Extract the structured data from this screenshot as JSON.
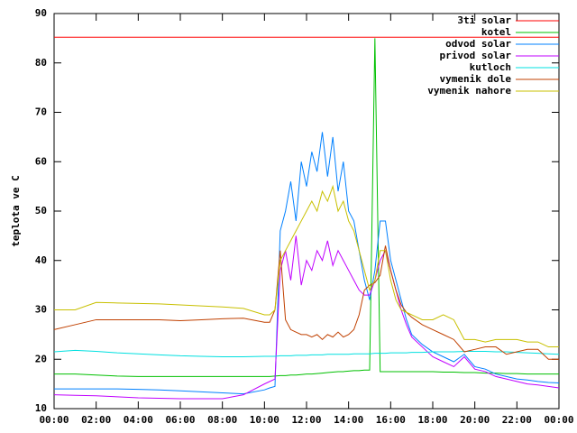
{
  "chart_data": {
    "type": "line",
    "y_label": "teplota ve C",
    "x": [
      0,
      1,
      2,
      3,
      4,
      5,
      6,
      7,
      8,
      9,
      10,
      10.25,
      10.5,
      10.75,
      11,
      11.25,
      11.5,
      11.75,
      12,
      12.25,
      12.5,
      12.75,
      13,
      13.25,
      13.5,
      13.75,
      14,
      14.25,
      14.5,
      14.75,
      15,
      15.25,
      15.5,
      15.75,
      16,
      16.25,
      16.5,
      16.75,
      17,
      17.5,
      18,
      18.5,
      19,
      19.5,
      20,
      20.5,
      21,
      21.5,
      22,
      22.5,
      23,
      23.5,
      24
    ],
    "xlim": [
      0,
      24
    ],
    "xticks": [
      {
        "value": 0,
        "label": "00:00"
      },
      {
        "value": 2,
        "label": "02:00"
      },
      {
        "value": 4,
        "label": "04:00"
      },
      {
        "value": 6,
        "label": "06:00"
      },
      {
        "value": 8,
        "label": "08:00"
      },
      {
        "value": 10,
        "label": "10:00"
      },
      {
        "value": 12,
        "label": "12:00"
      },
      {
        "value": 14,
        "label": "14:00"
      },
      {
        "value": 16,
        "label": "16:00"
      },
      {
        "value": 18,
        "label": "18:00"
      },
      {
        "value": 20,
        "label": "20:00"
      },
      {
        "value": 22,
        "label": "22:00"
      },
      {
        "value": 24,
        "label": "00:00"
      }
    ],
    "ylim": [
      10,
      90
    ],
    "yticks": [
      10,
      20,
      30,
      40,
      50,
      60,
      70,
      80,
      90
    ],
    "grid": false,
    "legend": "top-right",
    "series": [
      {
        "name": "3ti solar",
        "color": "#ff0000",
        "values": [
          85.2,
          85.2,
          85.2,
          85.2,
          85.2,
          85.2,
          85.2,
          85.2,
          85.2,
          85.2,
          85.2,
          85.2,
          85.2,
          85.2,
          85.2,
          85.2,
          85.2,
          85.2,
          85.2,
          85.2,
          85.2,
          85.2,
          85.2,
          85.2,
          85.2,
          85.2,
          85.2,
          85.2,
          85.2,
          85.2,
          85.2,
          85.2,
          85.2,
          85.2,
          85.2,
          85.2,
          85.2,
          85.2,
          85.2,
          85.2,
          85.2,
          85.2,
          85.2,
          85.2,
          85.2,
          85.2,
          85.2,
          85.2,
          85.2,
          85.2,
          85.2,
          85.2,
          85.2
        ]
      },
      {
        "name": "kotel",
        "color": "#00c000",
        "values": [
          17,
          17,
          16.8,
          16.6,
          16.5,
          16.5,
          16.5,
          16.5,
          16.5,
          16.5,
          16.5,
          16.5,
          16.6,
          16.7,
          16.7,
          16.8,
          16.8,
          16.9,
          17,
          17,
          17.1,
          17.2,
          17.3,
          17.4,
          17.5,
          17.5,
          17.6,
          17.7,
          17.7,
          17.8,
          17.8,
          85,
          17.5,
          17.5,
          17.5,
          17.5,
          17.5,
          17.5,
          17.5,
          17.5,
          17.5,
          17.4,
          17.4,
          17.3,
          17.3,
          17.2,
          17.2,
          17.1,
          17.1,
          17,
          17,
          17,
          17
        ]
      },
      {
        "name": "odvod solar",
        "color": "#0080ff",
        "values": [
          14,
          14,
          14,
          14,
          13.9,
          13.8,
          13.6,
          13.4,
          13.2,
          13,
          13.8,
          14.2,
          14.5,
          46,
          50,
          56,
          48,
          60,
          55,
          62,
          58,
          66,
          57,
          65,
          54,
          60,
          50,
          48,
          42,
          36,
          32,
          38,
          48,
          48,
          40,
          36,
          32,
          28,
          25,
          23,
          21.5,
          20.5,
          19.5,
          21,
          18.5,
          18,
          17,
          16.5,
          16,
          15.8,
          15.5,
          15.3,
          15.2
        ]
      },
      {
        "name": "privod solar",
        "color": "#c000ff",
        "values": [
          12.8,
          12.7,
          12.6,
          12.4,
          12.2,
          12.1,
          12,
          12,
          12,
          12.8,
          15,
          15.5,
          16,
          38,
          42,
          36,
          45,
          35,
          40,
          38,
          42,
          40,
          44,
          39,
          42,
          40,
          38,
          36,
          34,
          33,
          33,
          36,
          40,
          42,
          38,
          34,
          30,
          27,
          24.5,
          22.5,
          20.5,
          19.5,
          18.5,
          20.5,
          18,
          17.5,
          16.5,
          16,
          15.5,
          15,
          14.8,
          14.5,
          14.2
        ]
      },
      {
        "name": "kutloch",
        "color": "#00e0e0",
        "values": [
          21.5,
          21.8,
          21.6,
          21.3,
          21.1,
          20.9,
          20.7,
          20.6,
          20.5,
          20.5,
          20.6,
          20.6,
          20.6,
          20.7,
          20.7,
          20.7,
          20.8,
          20.8,
          20.8,
          20.9,
          20.9,
          20.9,
          21,
          21,
          21,
          21,
          21,
          21.1,
          21.1,
          21.1,
          21.1,
          21.2,
          21.2,
          21.2,
          21.3,
          21.3,
          21.3,
          21.3,
          21.4,
          21.4,
          21.5,
          21.5,
          21.5,
          21.6,
          21.6,
          21.6,
          21.5,
          21.5,
          21.4,
          21.3,
          21.2,
          21.1,
          21
        ]
      },
      {
        "name": "vymenik dole",
        "color": "#c04000",
        "values": [
          26,
          27,
          28,
          28,
          28,
          28,
          27.8,
          28,
          28.2,
          28.3,
          27.5,
          27.5,
          30,
          42,
          28,
          26,
          25.5,
          25,
          25,
          24.5,
          25,
          24,
          25,
          24.5,
          25.5,
          24.5,
          25,
          26,
          29,
          34,
          35,
          35.5,
          37,
          43,
          38,
          34,
          31,
          29.5,
          28.5,
          27,
          26,
          25,
          24,
          21.5,
          22,
          22.5,
          22.5,
          21,
          21.5,
          22,
          22,
          20,
          20
        ]
      },
      {
        "name": "vymenik nahore",
        "color": "#c8c000",
        "values": [
          30,
          30,
          31.5,
          31.4,
          31.3,
          31.2,
          31,
          30.8,
          30.6,
          30.3,
          29,
          29,
          30,
          40,
          42,
          44,
          46,
          48,
          50,
          52,
          50,
          54,
          52,
          55,
          50,
          52,
          48,
          46,
          42,
          38,
          34,
          36,
          42,
          42,
          36,
          32,
          30,
          29.5,
          29,
          28,
          28,
          29,
          28,
          24,
          24,
          23.5,
          24,
          24,
          24,
          23.5,
          23.5,
          22.5,
          22.5
        ]
      }
    ]
  }
}
